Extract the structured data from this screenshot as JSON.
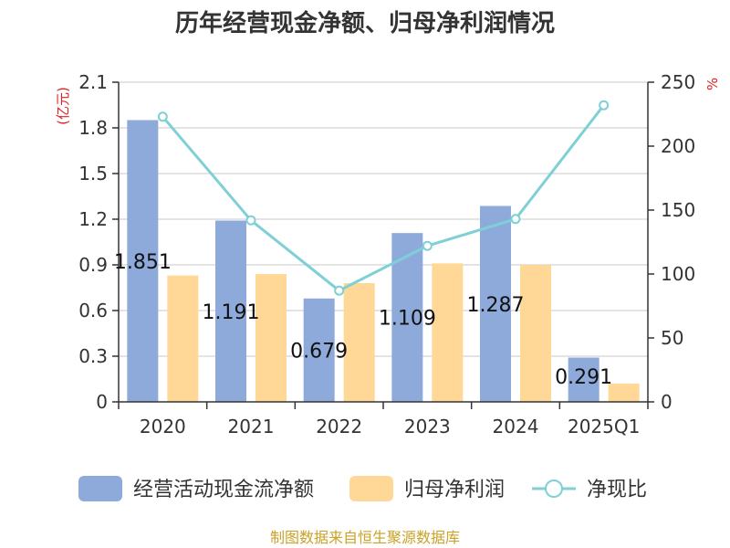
{
  "chart_data": {
    "type": "bar",
    "title": "历年经营现金净额、归母净利润情况",
    "categories": [
      "2020",
      "2021",
      "2022",
      "2023",
      "2024",
      "2025Q1"
    ],
    "left_axis": {
      "unit_label": "(亿元)",
      "ylim": [
        0,
        2.1
      ],
      "ticks": [
        "0",
        "0.3",
        "0.6",
        "0.9",
        "1.2",
        "1.5",
        "1.8",
        "2.1"
      ]
    },
    "right_axis": {
      "unit_label": "%",
      "ylim": [
        0,
        250
      ],
      "ticks": [
        "0",
        "50",
        "100",
        "150",
        "200",
        "250"
      ]
    },
    "series": [
      {
        "name": "经营活动现金流净额",
        "type": "bar",
        "axis": "left",
        "color": "#8eaadb",
        "values": [
          1.851,
          1.191,
          0.679,
          1.109,
          1.287,
          0.291
        ],
        "labels": [
          "1.851",
          "1.191",
          "0.679",
          "1.109",
          "1.287",
          "0.291"
        ]
      },
      {
        "name": "归母净利润",
        "type": "bar",
        "axis": "left",
        "color": "#ffd897",
        "values": [
          0.83,
          0.84,
          0.78,
          0.91,
          0.9,
          0.12
        ]
      },
      {
        "name": "净现比",
        "type": "line",
        "axis": "right",
        "color": "#7fd0d6",
        "values": [
          223,
          142,
          87,
          122,
          143,
          232
        ]
      }
    ],
    "grid": true,
    "legend_position": "bottom",
    "source": "制图数据来自恒生聚源数据库"
  }
}
